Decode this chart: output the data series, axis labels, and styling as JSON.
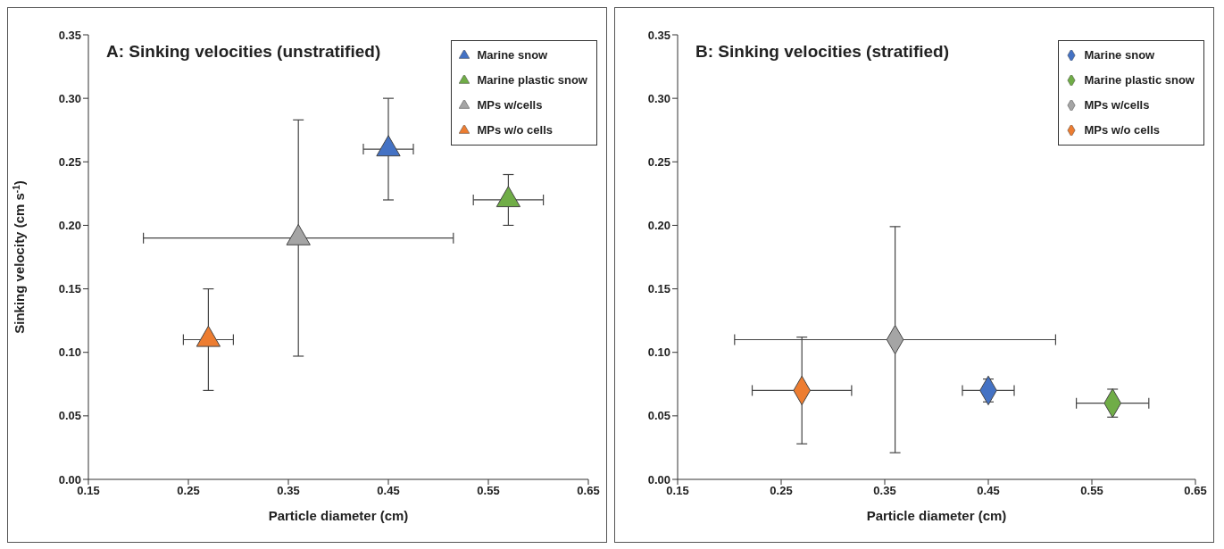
{
  "chart_data": [
    {
      "type": "scatter",
      "title": "A: Sinking velocities (unstratified)",
      "xlabel": "Particle diameter (cm)",
      "ylabel": "Sinking velocity (cm s$^{-1}$)",
      "xlim": [
        0.15,
        0.65
      ],
      "xticks": [
        0.15,
        0.25,
        0.35,
        0.45,
        0.55,
        0.65
      ],
      "ylim": [
        0,
        0.35
      ],
      "yticks": [
        {
          "value": 0,
          "label": "0.00"
        },
        0.05,
        {
          "value": 0.1,
          "label": "0.10"
        },
        0.15,
        {
          "value": 0.2,
          "label": "0.20"
        },
        0.25,
        {
          "value": 0.3,
          "label": "0.30"
        },
        0.35
      ],
      "grid": false,
      "legend": "top right",
      "marker": "triangle",
      "series": [
        {
          "name": "Marine snow",
          "color": "#4472c4",
          "x": [
            0.45
          ],
          "values": [
            0.26
          ],
          "errors": [
            0.04
          ],
          "xerrors": [
            0.025
          ]
        },
        {
          "name": "Marine plastic snow",
          "color": "#70ad47",
          "x": [
            0.57
          ],
          "values": [
            0.22
          ],
          "errors": [
            0.02
          ],
          "xerrors": [
            0.035
          ]
        },
        {
          "name": "MPs w/cells",
          "color": "#a5a5a5",
          "x": [
            0.36
          ],
          "values": [
            0.19
          ],
          "errors": [
            0.093
          ],
          "xerrors": [
            0.155
          ]
        },
        {
          "name": "MPs w/o cells",
          "color": "#ed7d31",
          "x": [
            0.27
          ],
          "values": [
            0.11
          ],
          "errors": [
            0.04
          ],
          "xerrors": [
            0.025
          ]
        }
      ]
    },
    {
      "type": "scatter",
      "title": "B: Sinking velocities (stratified)",
      "xlabel": "Particle diameter (cm)",
      "xlim": [
        0.15,
        0.65
      ],
      "xticks": [
        0.15,
        0.25,
        0.35,
        0.45,
        0.55,
        0.65
      ],
      "ylim": [
        0,
        0.35
      ],
      "yticks": [
        {
          "value": 0,
          "label": "0.00"
        },
        0.05,
        {
          "value": 0.1,
          "label": "0.10"
        },
        0.15,
        {
          "value": 0.2,
          "label": "0.20"
        },
        0.25,
        {
          "value": 0.3,
          "label": "0.30"
        },
        0.35
      ],
      "grid": false,
      "legend": "top right",
      "marker": "diamond",
      "series": [
        {
          "name": "Marine snow",
          "color": "#4472c4",
          "x": [
            0.45
          ],
          "values": [
            0.07
          ],
          "errors": [
            0.009
          ],
          "xerrors": [
            0.025
          ]
        },
        {
          "name": "Marine plastic snow",
          "color": "#70ad47",
          "x": [
            0.57
          ],
          "values": [
            0.06
          ],
          "errors": [
            0.011
          ],
          "xerrors": [
            0.035
          ]
        },
        {
          "name": "MPs w/cells",
          "color": "#a5a5a5",
          "x": [
            0.36
          ],
          "values": [
            0.11
          ],
          "errors": [
            0.089
          ],
          "xerrors": [
            0.155
          ]
        },
        {
          "name": "MPs w/o cells",
          "color": "#ed7d31",
          "x": [
            0.27
          ],
          "values": [
            0.07
          ],
          "errors": [
            0.042
          ],
          "xerrors": [
            0.048
          ]
        }
      ]
    }
  ]
}
